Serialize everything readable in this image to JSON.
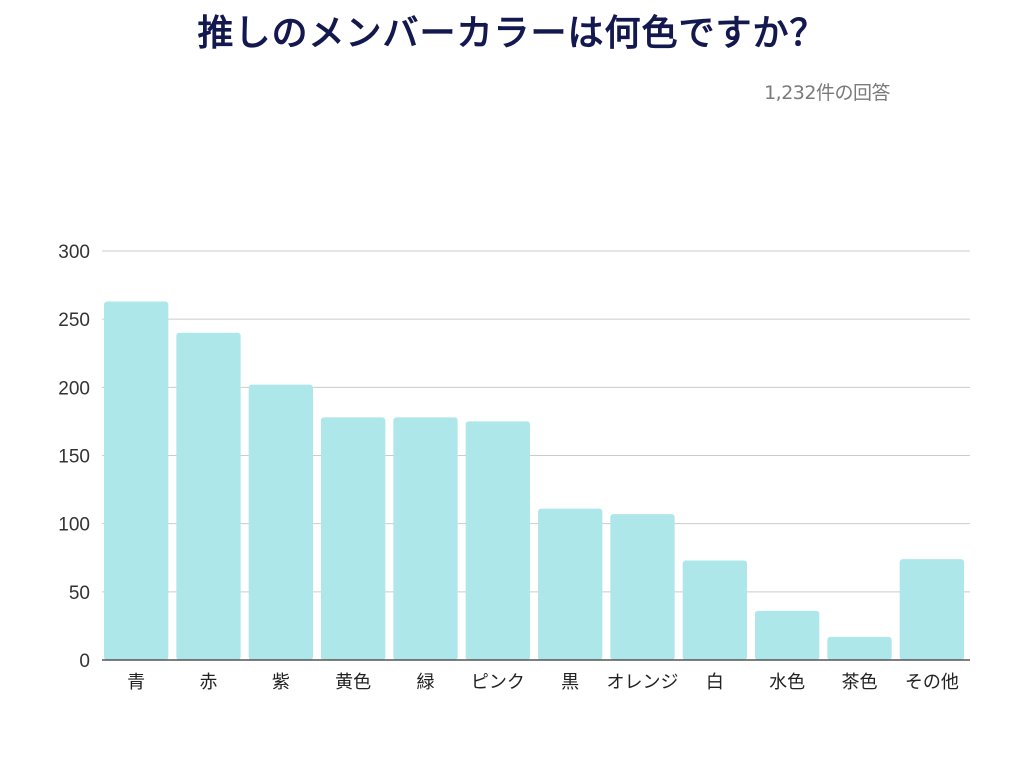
{
  "title": "推しのメンバーカラーは何色ですか？",
  "subtitle": "1,232件の回答",
  "colors": {
    "bar": "#aee7ea",
    "grid": "#cccccc",
    "axis": "#555555",
    "title": "#13184f"
  },
  "chart_data": {
    "type": "bar",
    "title": "推しのメンバーカラーは何色ですか？",
    "subtitle": "1,232件の回答",
    "categories": [
      "青",
      "赤",
      "紫",
      "黄色",
      "緑",
      "ピンク",
      "黒",
      "オレンジ",
      "白",
      "水色",
      "茶色",
      "その他"
    ],
    "values": [
      263,
      240,
      202,
      178,
      178,
      175,
      111,
      107,
      73,
      36,
      17,
      74
    ],
    "ylim": [
      0,
      300
    ],
    "yticks": [
      0,
      50,
      100,
      150,
      200,
      250,
      300
    ],
    "grid": true,
    "legend": "none",
    "xlabel": "",
    "ylabel": ""
  }
}
